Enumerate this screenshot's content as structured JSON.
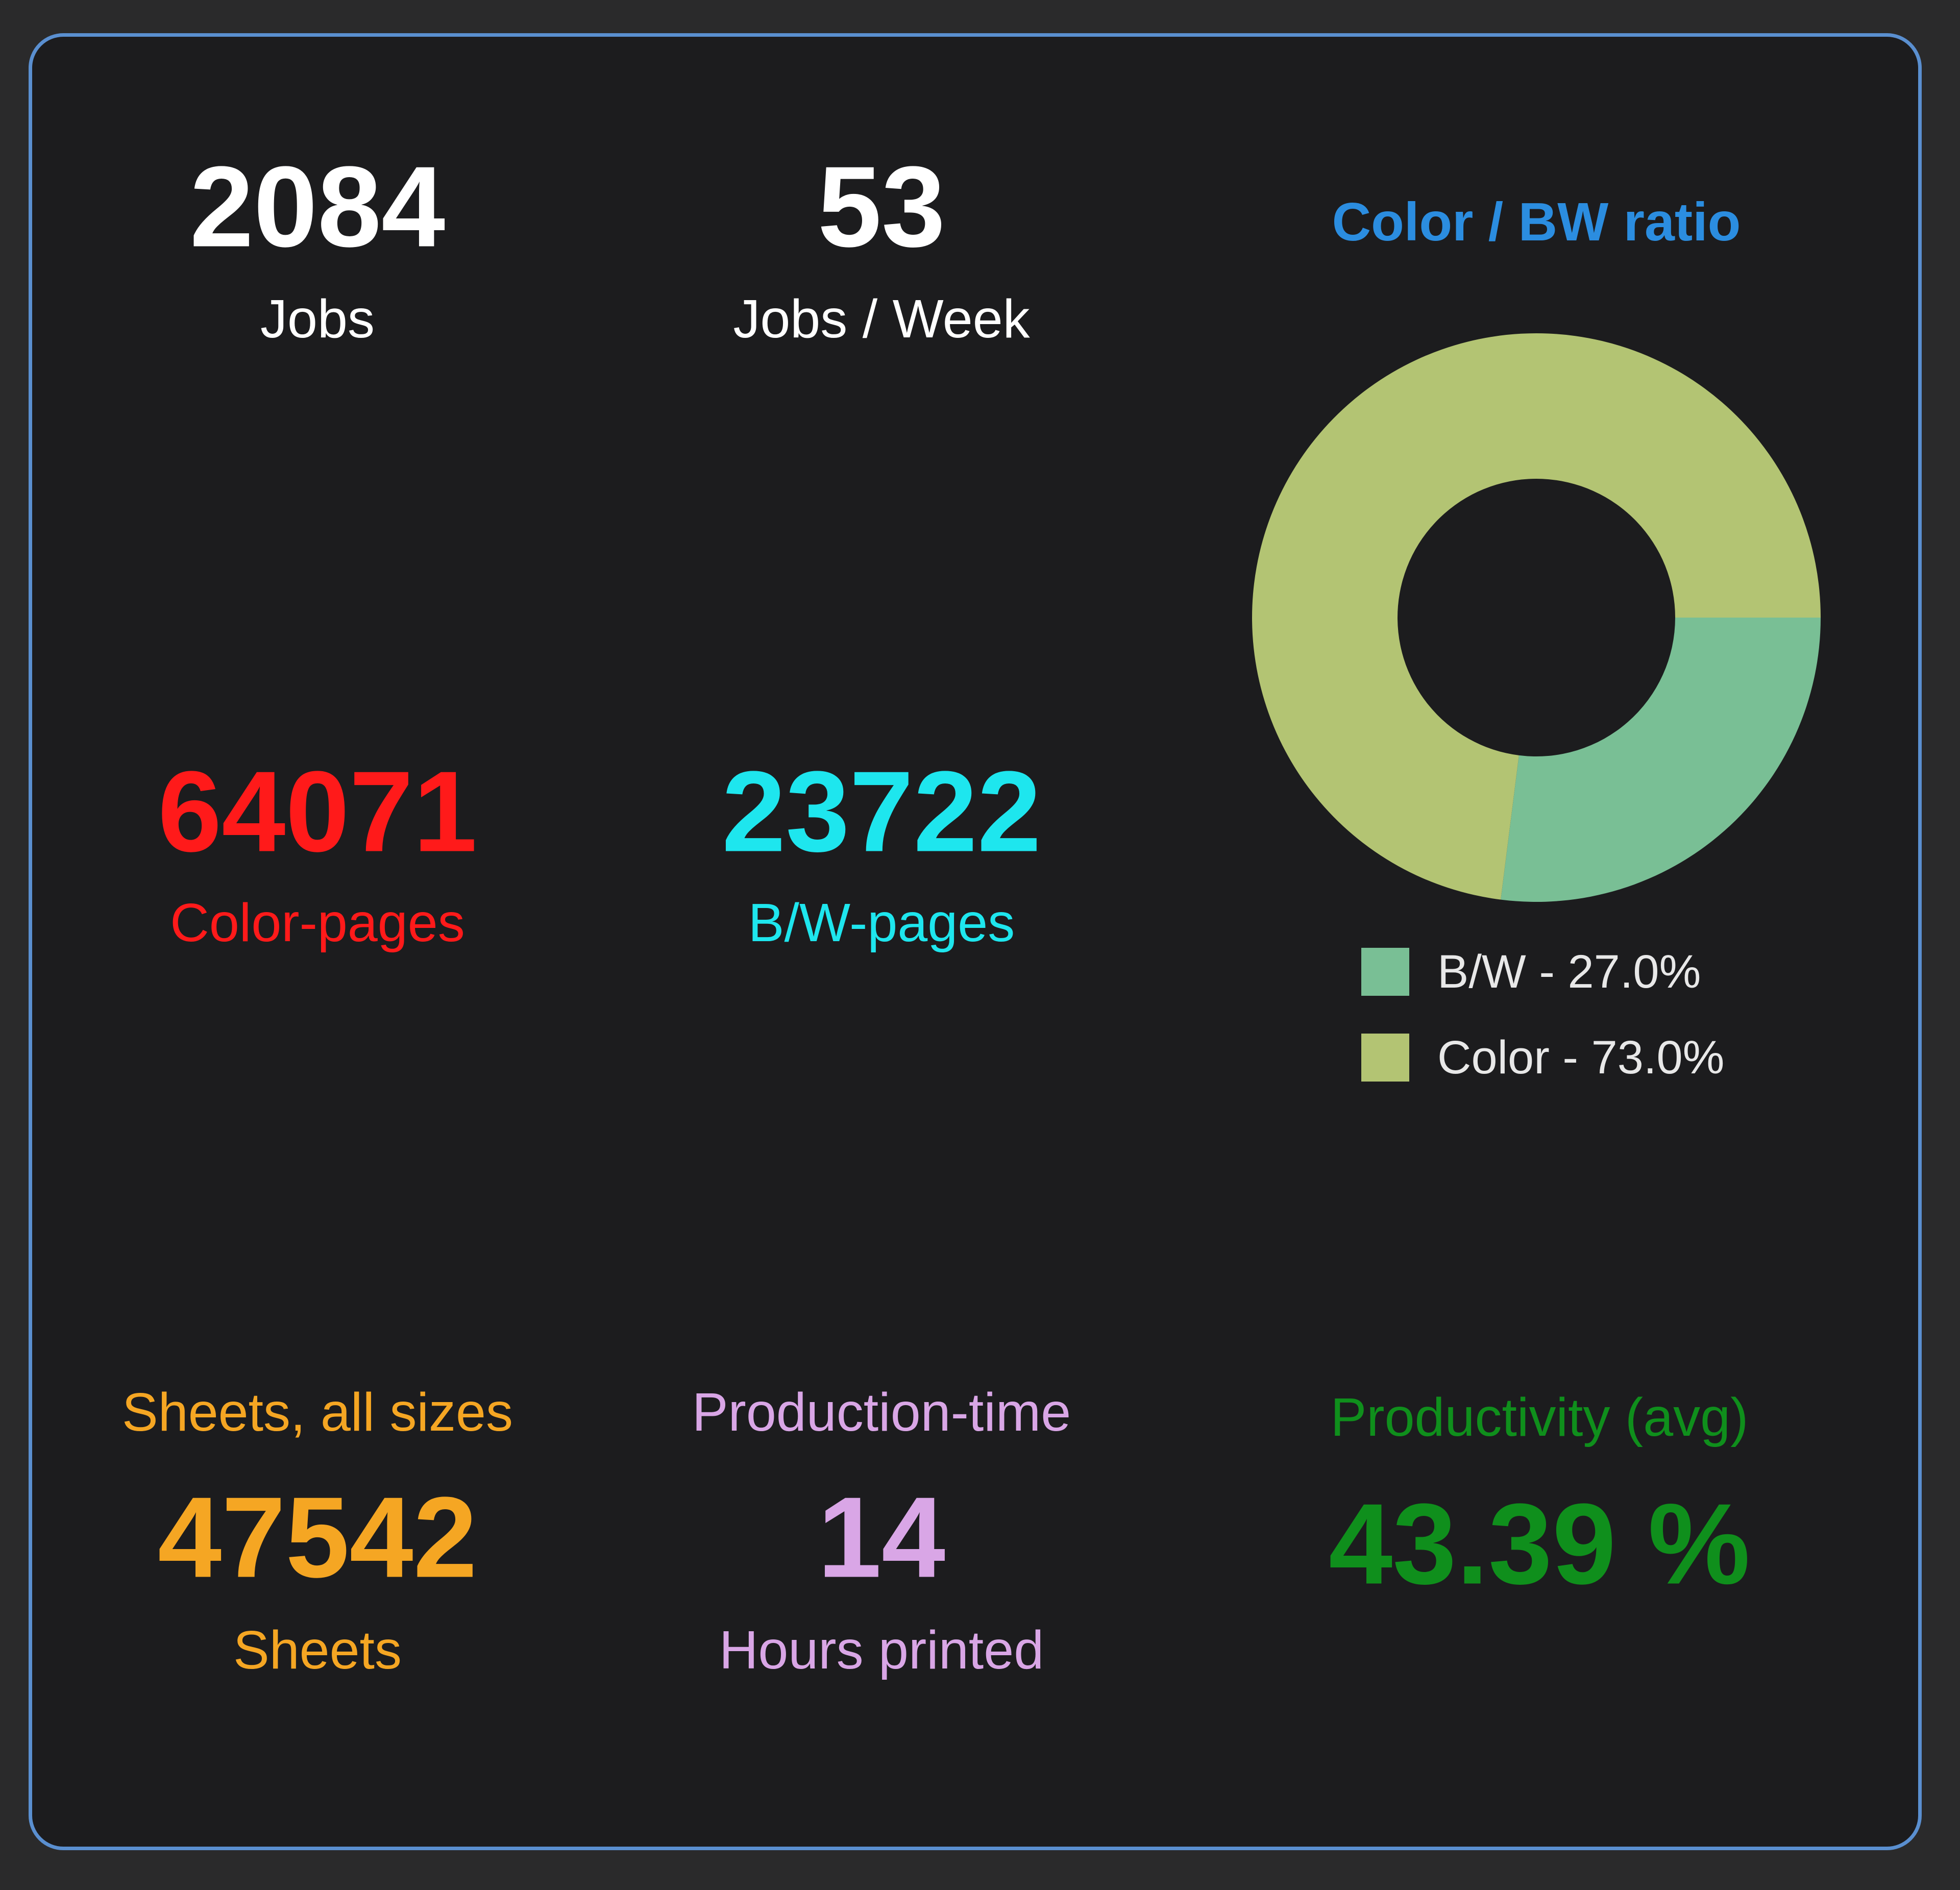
{
  "stats": {
    "jobs": {
      "value": "2084",
      "label": "Jobs",
      "color": "#ffffff"
    },
    "jobs_week": {
      "value": "53",
      "label": "Jobs / Week",
      "color": "#ffffff"
    },
    "color_pages": {
      "value": "64071",
      "label": "Color-pages",
      "color": "#ff1a1a"
    },
    "bw_pages": {
      "value": "23722",
      "label": "B/W-pages",
      "color": "#1ee6ee"
    },
    "sheets": {
      "title": "Sheets, all sizes",
      "value": "47542",
      "label": "Sheets",
      "color": "#f5a623"
    },
    "production_time": {
      "title": "Production-time",
      "value": "14",
      "label": "Hours printed",
      "color": "#d9a6e6"
    },
    "productivity": {
      "title": "Productivity (avg)",
      "value": "43.39 %",
      "color": "#0f8f1c"
    }
  },
  "chart_data": {
    "type": "pie",
    "title": "Color / BW ratio",
    "title_color": "#2b8de0",
    "donut": true,
    "slices": [
      {
        "name": "B/W",
        "value": 27.0,
        "color": "#79bf95",
        "legend": "B/W - 27.0%"
      },
      {
        "name": "Color",
        "value": 73.0,
        "color": "#b3c473",
        "legend": "Color - 73.0%"
      }
    ],
    "legend_position": "bottom"
  }
}
